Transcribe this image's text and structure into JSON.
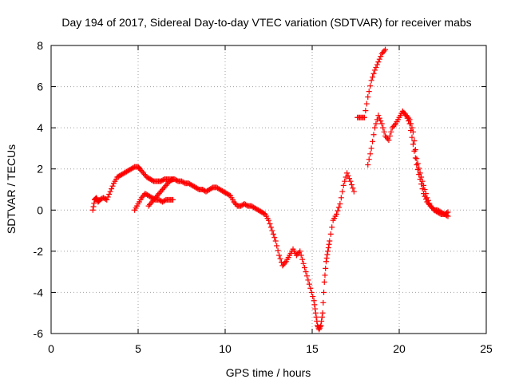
{
  "chart_data": {
    "type": "scatter",
    "title": "Day 194 of 2017, Sidereal Day-to-day VTEC variation (SDTVAR) for receiver mabs",
    "xlabel": "GPS time / hours",
    "ylabel": "SDTVAR / TECUs",
    "xlim": [
      0,
      25
    ],
    "ylim": [
      -6,
      8
    ],
    "xticks": [
      "0",
      "5",
      "10",
      "15",
      "20",
      "25"
    ],
    "yticks": [
      "-6",
      "-4",
      "-2",
      "0",
      "2",
      "4",
      "6",
      "8"
    ],
    "grid": true,
    "marker": "plus",
    "color": "#ff0000",
    "series": [
      {
        "x": [
          2.4,
          2.5,
          2.6,
          2.7,
          2.8,
          3.0,
          3.2,
          3.4,
          3.6,
          3.8,
          4.0,
          4.2,
          4.4,
          4.6,
          4.8,
          5.0,
          5.1,
          5.3,
          5.5,
          5.7,
          5.9,
          6.1,
          6.3,
          6.5,
          6.7,
          6.9,
          7.1,
          7.3,
          7.5,
          7.7,
          7.9,
          8.1,
          8.3,
          8.5,
          8.7,
          8.9,
          9.1,
          9.3,
          9.5,
          9.7,
          9.9,
          10.1,
          10.3,
          10.5,
          10.7,
          10.9,
          11.1,
          11.3,
          11.5,
          11.7,
          11.9,
          12.1,
          12.3,
          12.5,
          12.7,
          12.9,
          13.1,
          13.3,
          13.5,
          13.7,
          13.9,
          14.1,
          14.3,
          14.5,
          14.7,
          14.9,
          15.1,
          15.2,
          15.3,
          15.4,
          15.5,
          15.6,
          15.7,
          15.8,
          15.9,
          16.0,
          16.2,
          16.4,
          16.6,
          16.8,
          17.0,
          17.2,
          17.4
        ],
        "y": [
          0.0,
          0.5,
          0.6,
          0.4,
          0.5,
          0.6,
          0.5,
          0.9,
          1.3,
          1.6,
          1.7,
          1.8,
          1.9,
          2.0,
          2.1,
          2.1,
          2.0,
          1.8,
          1.6,
          1.5,
          1.4,
          1.4,
          1.4,
          1.5,
          1.5,
          1.5,
          1.5,
          1.4,
          1.4,
          1.3,
          1.3,
          1.2,
          1.1,
          1.0,
          1.0,
          0.9,
          1.0,
          1.1,
          1.1,
          1.0,
          0.9,
          0.8,
          0.7,
          0.4,
          0.2,
          0.2,
          0.3,
          0.2,
          0.2,
          0.1,
          0.0,
          -0.1,
          -0.2,
          -0.5,
          -1.0,
          -1.5,
          -2.2,
          -2.7,
          -2.5,
          -2.2,
          -1.9,
          -2.2,
          -2.0,
          -2.6,
          -3.2,
          -3.8,
          -4.4,
          -5.0,
          -5.6,
          -5.8,
          -5.6,
          -5.0,
          -3.5,
          -2.5,
          -2.0,
          -1.5,
          -0.5,
          -0.2,
          0.3,
          1.2,
          1.8,
          1.4,
          0.9
        ]
      },
      {
        "x": [
          4.8,
          5.0,
          5.2,
          5.4,
          5.6,
          5.8,
          6.0,
          6.2,
          6.4,
          6.6,
          6.8,
          7.0
        ],
        "y": [
          0.0,
          0.3,
          0.6,
          0.8,
          0.7,
          0.6,
          0.5,
          0.5,
          0.4,
          0.5,
          0.5,
          0.5
        ]
      },
      {
        "x": [
          5.6,
          5.8,
          6.0,
          6.2,
          6.4,
          6.6,
          6.8,
          7.0
        ],
        "y": [
          0.2,
          0.4,
          0.6,
          0.8,
          1.0,
          1.2,
          1.4,
          1.5
        ]
      },
      {
        "x": [
          17.6,
          17.8,
          18.0,
          18.2,
          18.4,
          18.6,
          18.8,
          19.0,
          19.2
        ],
        "y": [
          4.5,
          4.5,
          4.5,
          5.5,
          6.3,
          6.8,
          7.2,
          7.6,
          7.8
        ]
      },
      {
        "x": [
          18.2,
          18.4,
          18.6,
          18.8,
          19.0,
          19.2,
          19.4,
          19.6,
          19.8,
          20.0,
          20.2,
          20.4,
          20.6,
          20.8,
          21.0,
          21.2,
          21.4,
          21.6,
          21.8,
          22.0,
          22.2,
          22.4,
          22.6,
          22.8
        ],
        "y": [
          2.2,
          3.0,
          4.0,
          4.6,
          4.2,
          3.6,
          3.4,
          4.0,
          4.2,
          4.5,
          4.8,
          4.6,
          4.4,
          3.8,
          2.5,
          1.8,
          1.2,
          0.6,
          0.2,
          0.0,
          -0.1,
          -0.2,
          -0.2,
          -0.3
        ]
      },
      {
        "x": [
          20.2,
          20.4,
          20.6,
          20.8,
          21.0,
          21.2,
          21.4,
          21.6,
          21.8,
          22.0,
          22.2,
          22.4,
          22.6,
          22.8
        ],
        "y": [
          4.8,
          4.6,
          4.2,
          3.2,
          2.2,
          1.5,
          0.8,
          0.4,
          0.2,
          0.0,
          0.0,
          -0.1,
          -0.2,
          -0.1
        ]
      }
    ]
  }
}
